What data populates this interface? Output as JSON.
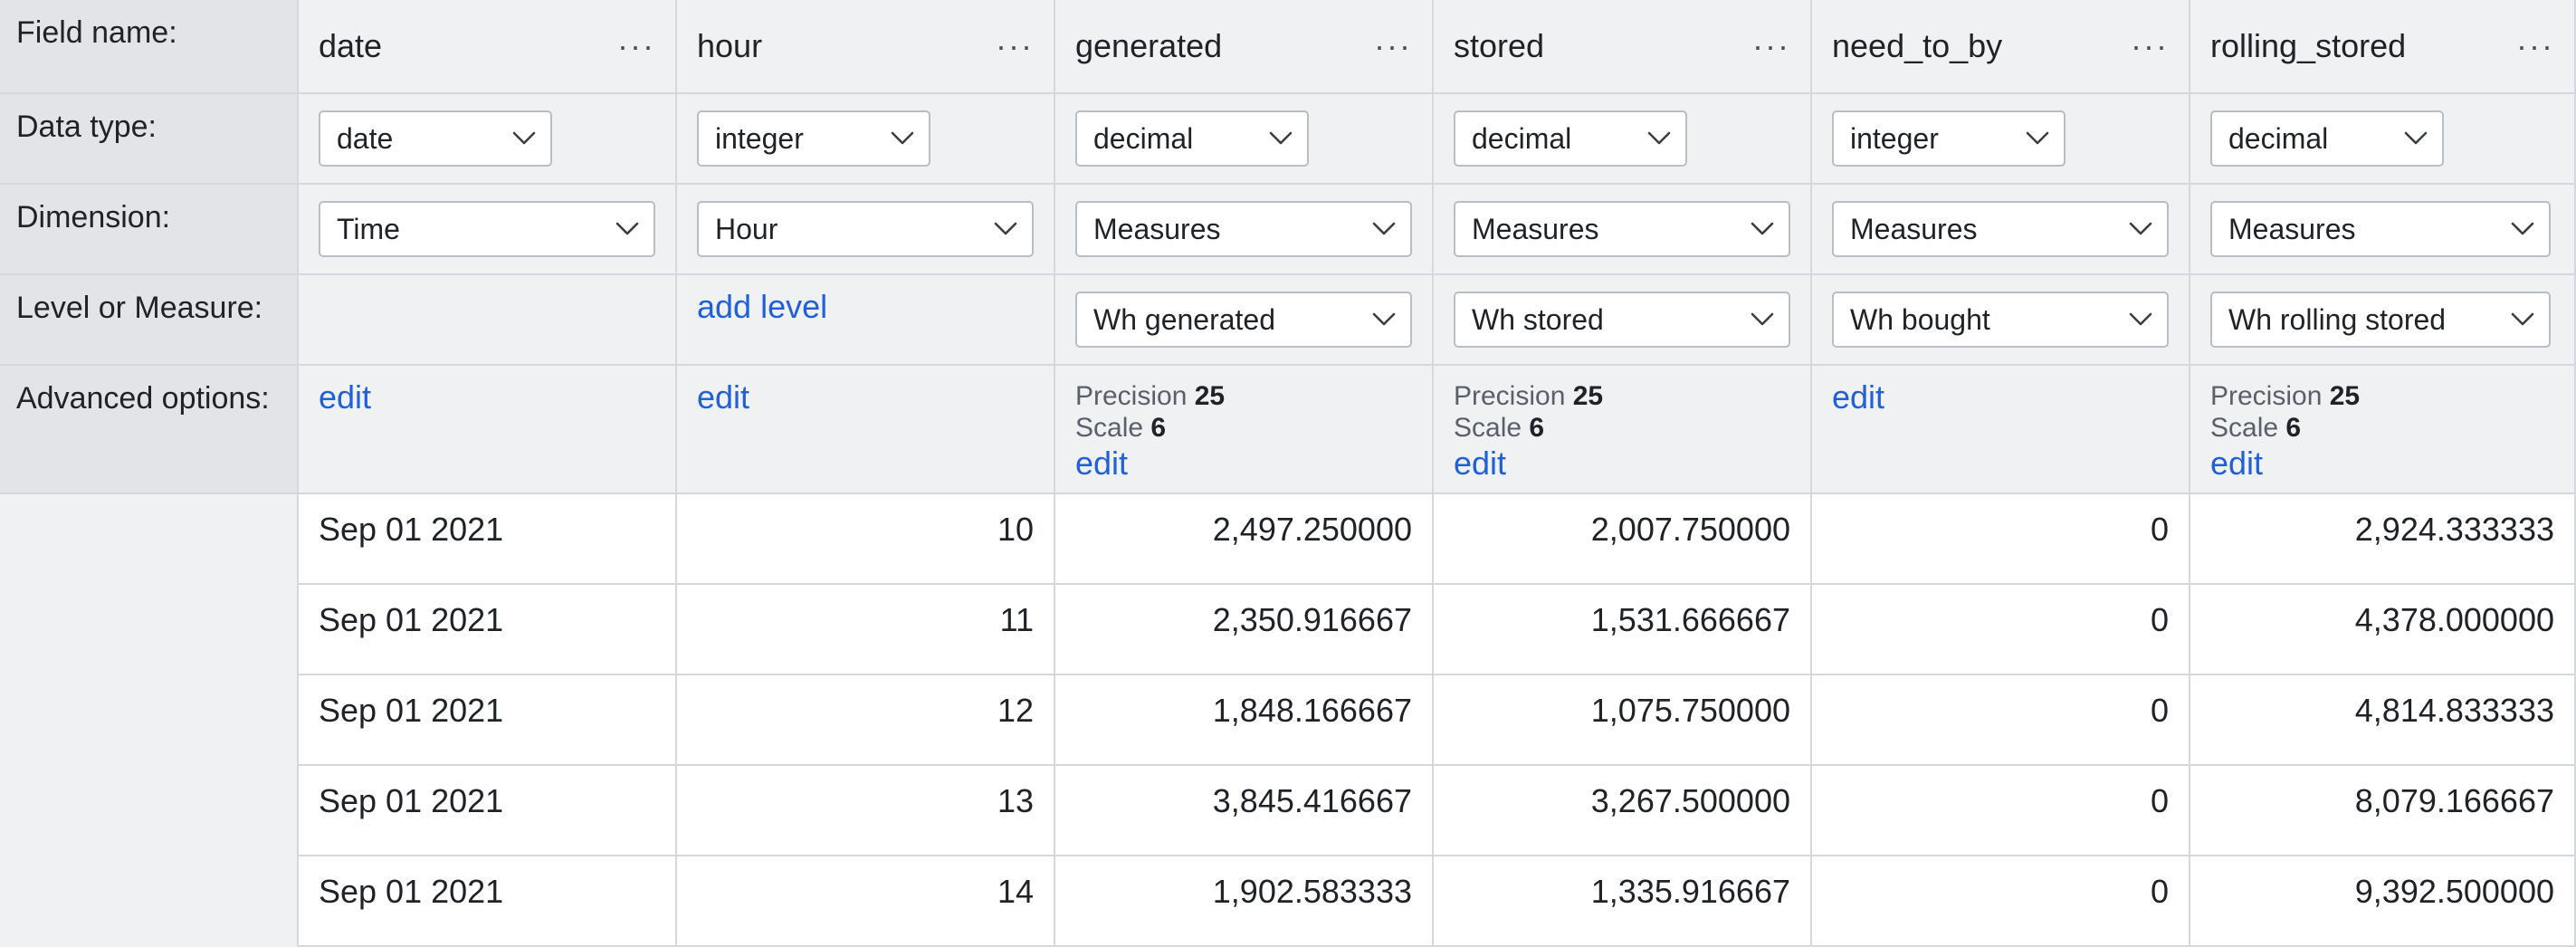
{
  "labels": {
    "field_name": "Field name:",
    "data_type": "Data type:",
    "dimension": "Dimension:",
    "level_or_measure": "Level or Measure:",
    "advanced_options": "Advanced options:"
  },
  "columns": [
    {
      "name": "date",
      "data_type": "date",
      "dimension": "Time",
      "level": "",
      "advanced": {
        "type": "link",
        "link": "edit"
      }
    },
    {
      "name": "hour",
      "data_type": "integer",
      "dimension": "Hour",
      "level_link": "add level",
      "advanced": {
        "type": "link",
        "link": "edit"
      }
    },
    {
      "name": "generated",
      "data_type": "decimal",
      "dimension": "Measures",
      "level": "Wh generated",
      "advanced": {
        "type": "precision",
        "precision_label": "Precision",
        "precision": "25",
        "scale_label": "Scale",
        "scale": "6",
        "link": "edit"
      }
    },
    {
      "name": "stored",
      "data_type": "decimal",
      "dimension": "Measures",
      "level": "Wh stored",
      "advanced": {
        "type": "precision",
        "precision_label": "Precision",
        "precision": "25",
        "scale_label": "Scale",
        "scale": "6",
        "link": "edit"
      }
    },
    {
      "name": "need_to_by",
      "data_type": "integer",
      "dimension": "Measures",
      "level": "Wh bought",
      "advanced": {
        "type": "link",
        "link": "edit"
      }
    },
    {
      "name": "rolling_stored",
      "data_type": "decimal",
      "dimension": "Measures",
      "level": "Wh rolling stored",
      "advanced": {
        "type": "precision",
        "precision_label": "Precision",
        "precision": "25",
        "scale_label": "Scale",
        "scale": "6",
        "link": "edit"
      }
    }
  ],
  "menu_glyph": "···",
  "rows": [
    [
      "Sep 01 2021",
      "10",
      "2,497.250000",
      "2,007.750000",
      "0",
      "2,924.333333"
    ],
    [
      "Sep 01 2021",
      "11",
      "2,350.916667",
      "1,531.666667",
      "0",
      "4,378.000000"
    ],
    [
      "Sep 01 2021",
      "12",
      "1,848.166667",
      "1,075.750000",
      "0",
      "4,814.833333"
    ],
    [
      "Sep 01 2021",
      "13",
      "3,845.416667",
      "3,267.500000",
      "0",
      "8,079.166667"
    ],
    [
      "Sep 01 2021",
      "14",
      "1,902.583333",
      "1,335.916667",
      "0",
      "9,392.500000"
    ]
  ]
}
